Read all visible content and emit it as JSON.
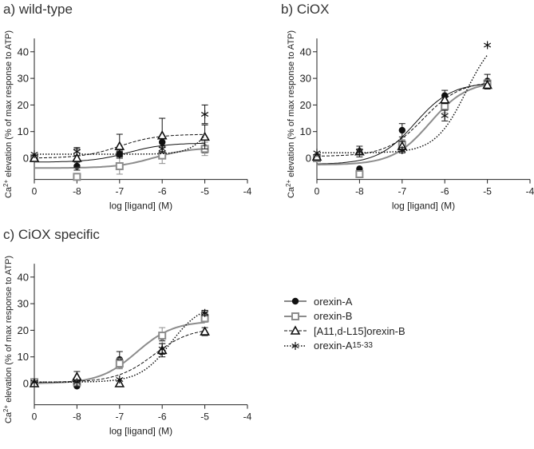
{
  "y_axis_label": {
    "pre": "Ca",
    "sup": "2+",
    "post": " elevation (% of max response to ATP)"
  },
  "x_axis_label": "log [ligand] (M)",
  "legend": [
    {
      "label": "orexin-A",
      "sub": ""
    },
    {
      "label": "orexin-B",
      "sub": ""
    },
    {
      "label": "[A11,d-L15]orexin-B",
      "sub": ""
    },
    {
      "label": "orexin-A",
      "sub": "15-33"
    }
  ],
  "chart_data": [
    {
      "type": "line",
      "title": "a) wild-type",
      "xticks": [
        "0",
        "-8",
        "-7",
        "-6",
        "-5",
        "-4"
      ],
      "x": [
        0,
        -8,
        -7,
        -6,
        -5
      ],
      "yticks": [
        0,
        10,
        20,
        30,
        40
      ],
      "ylim": [
        -8,
        45
      ],
      "series": [
        {
          "name": "orexin-A",
          "values": [
            0,
            -3,
            1.5,
            6,
            4
          ],
          "err": [
            0.5,
            1.5,
            1.5,
            2,
            2
          ],
          "fit": {
            "bottom": -1.5,
            "top": 5.7,
            "logec50": -6.8,
            "hill": 1
          }
        },
        {
          "name": "orexin-B",
          "values": [
            0,
            -7,
            -3,
            1,
            3.5
          ],
          "err": [
            0.5,
            1,
            3,
            3,
            2.5
          ],
          "fit": {
            "bottom": -3.7,
            "top": 4,
            "logec50": -6.2,
            "hill": 1
          }
        },
        {
          "name": "[A11,d-L15]orexin-B",
          "values": [
            0,
            0,
            4.5,
            8.5,
            8
          ],
          "err": [
            0.5,
            3.5,
            4.5,
            6.5,
            4.5
          ],
          "fit": {
            "bottom": 0,
            "top": 9,
            "logec50": -7,
            "hill": 1
          }
        },
        {
          "name": "orexin-A15-33",
          "values": [
            1.5,
            2.5,
            1.5,
            3.5,
            16.5
          ],
          "err": [
            0.5,
            1.5,
            1,
            1,
            3.5
          ],
          "fit": {
            "bottom": 1.5,
            "top": 40,
            "logec50": -4.6,
            "hill": 1.6
          }
        }
      ]
    },
    {
      "type": "line",
      "title": "b) CiOX",
      "xticks": [
        "0",
        "-8",
        "-7",
        "-6",
        "-5",
        "-4"
      ],
      "x": [
        0,
        -8,
        -7,
        -6,
        -5
      ],
      "yticks": [
        0,
        10,
        20,
        30,
        40
      ],
      "ylim": [
        -8,
        45
      ],
      "series": [
        {
          "name": "orexin-A",
          "values": [
            0.5,
            -4,
            10.5,
            23.5,
            29
          ],
          "err": [
            0.5,
            0.5,
            2.5,
            2,
            2.5
          ],
          "fit": {
            "bottom": -2.3,
            "top": 28.5,
            "logec50": -6.7,
            "hill": 1
          }
        },
        {
          "name": "orexin-B",
          "values": [
            0,
            -6,
            5,
            19.5,
            28
          ],
          "err": [
            0.5,
            0.5,
            2,
            2.5,
            1.5
          ],
          "fit": {
            "bottom": -2.5,
            "top": 29,
            "logec50": -6.35,
            "hill": 1
          }
        },
        {
          "name": "[A11,d-L15]orexin-B",
          "values": [
            0.5,
            2.5,
            4.5,
            22,
            27.5
          ],
          "err": [
            0.5,
            2,
            2,
            1.5,
            1.5
          ],
          "fit": {
            "bottom": 0.7,
            "top": 29,
            "logec50": -6.5,
            "hill": 1
          }
        },
        {
          "name": "orexin-A15-33",
          "values": [
            2,
            2.5,
            3,
            16,
            42.5
          ],
          "err": [
            0.5,
            1,
            1,
            2,
            0.5
          ],
          "fit": {
            "bottom": 2,
            "top": 48,
            "logec50": -5.5,
            "hill": 1.2
          }
        }
      ]
    },
    {
      "type": "line",
      "title": "c) CiOX specific",
      "xticks": [
        "0",
        "-8",
        "-7",
        "-6",
        "-5",
        "-4"
      ],
      "x": [
        0,
        -8,
        -7,
        -6,
        -5
      ],
      "yticks": [
        0,
        10,
        20,
        30,
        40
      ],
      "ylim": [
        -8,
        45
      ],
      "series": [
        {
          "name": "orexin-A",
          "values": [
            0,
            -1,
            9,
            17.5,
            25
          ],
          "err": [
            0.5,
            0.5,
            3,
            1.5,
            1.5
          ],
          "fit": {
            "bottom": 0,
            "top": 23.5,
            "logec50": -6.6,
            "hill": 1
          }
        },
        {
          "name": "orexin-B",
          "values": [
            0.5,
            0.5,
            7.5,
            18,
            24.5
          ],
          "err": [
            0.5,
            0.5,
            2,
            3,
            1.5
          ],
          "fit": {
            "bottom": 0,
            "top": 23.5,
            "logec50": -6.6,
            "hill": 1
          }
        },
        {
          "name": "[A11,d-L15]orexin-B",
          "values": [
            0,
            2.5,
            0,
            12.5,
            19.5
          ],
          "err": [
            0.5,
            2,
            0.5,
            2.5,
            1.5
          ],
          "fit": {
            "bottom": 0.5,
            "top": 21,
            "logec50": -6.2,
            "hill": 1
          }
        },
        {
          "name": "orexin-A15-33",
          "values": [
            0.5,
            0.5,
            1.5,
            13,
            26.5
          ],
          "err": [
            0.5,
            0.5,
            0.5,
            2,
            1
          ],
          "fit": {
            "bottom": 0.5,
            "top": 30,
            "logec50": -5.8,
            "hill": 1.2
          }
        }
      ]
    }
  ],
  "colors": {
    "orexinA": "#111111",
    "orexinB": "#8c8c8c",
    "analog": "#111111",
    "fragment": "#111111"
  }
}
